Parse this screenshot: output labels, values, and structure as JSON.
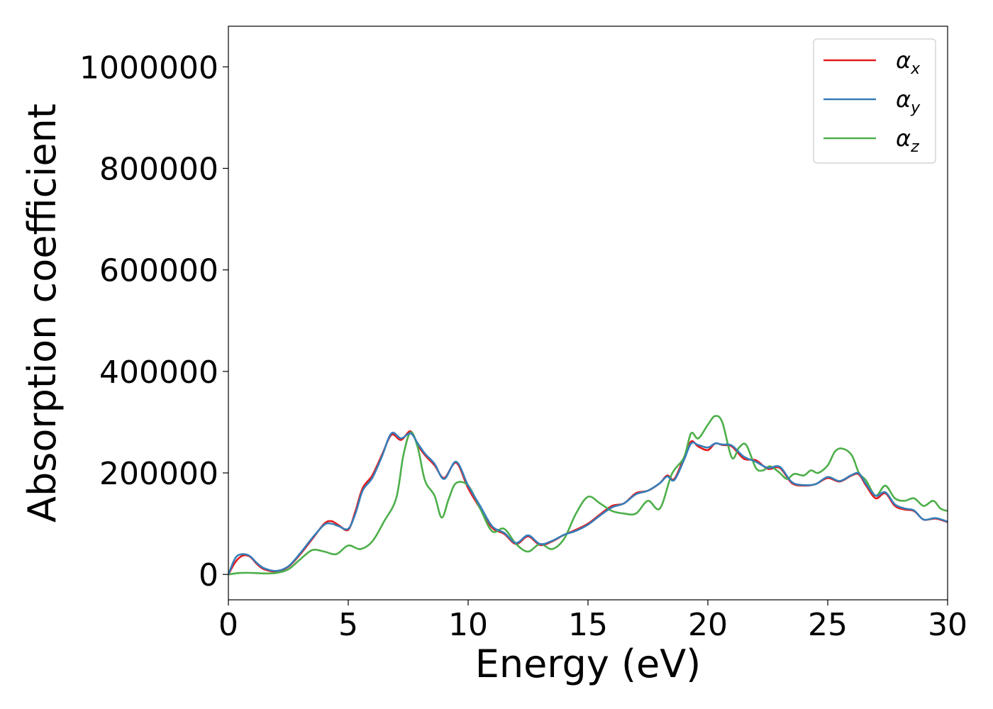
{
  "chart_data": {
    "type": "line",
    "xlabel": "Energy (eV)",
    "ylabel": "Absorption coefficient",
    "xlim": [
      0,
      30
    ],
    "ylim": [
      -50000,
      1080000
    ],
    "xticks": [
      0,
      5,
      10,
      15,
      20,
      25,
      30
    ],
    "xtick_labels": [
      "0",
      "5",
      "10",
      "15",
      "20",
      "25",
      "30"
    ],
    "yticks": [
      0,
      200000,
      400000,
      600000,
      800000,
      1000000
    ],
    "ytick_labels": [
      "0",
      "200000",
      "400000",
      "600000",
      "800000",
      "1000000"
    ],
    "grid": false,
    "legend_position": "top-right",
    "series": [
      {
        "name": "αx",
        "legend_symbol": "α",
        "legend_subscript": "x",
        "color": "#e41a1c",
        "x": [
          0,
          0.3,
          0.6,
          0.9,
          1.2,
          1.5,
          2.0,
          2.5,
          3.0,
          3.5,
          4.0,
          4.3,
          4.6,
          5.0,
          5.3,
          5.6,
          6.0,
          6.4,
          6.8,
          7.2,
          7.6,
          7.9,
          8.2,
          8.6,
          9.0,
          9.5,
          10.0,
          10.5,
          11.0,
          11.5,
          12.0,
          12.5,
          13.0,
          13.5,
          14.0,
          14.5,
          15.0,
          15.5,
          16.0,
          16.5,
          17.0,
          17.5,
          18.0,
          18.3,
          18.6,
          19.0,
          19.3,
          19.6,
          20.0,
          20.3,
          20.6,
          21.0,
          21.5,
          22.0,
          22.5,
          23.0,
          23.5,
          24.0,
          24.5,
          25.0,
          25.5,
          26.0,
          26.3,
          26.6,
          27.0,
          27.4,
          27.8,
          28.2,
          28.6,
          29.0,
          29.5,
          30.0
        ],
        "y": [
          0,
          25000,
          37000,
          35000,
          20000,
          10000,
          6000,
          15000,
          40000,
          70000,
          100000,
          105000,
          97000,
          88000,
          125000,
          170000,
          195000,
          235000,
          275000,
          265000,
          282000,
          255000,
          235000,
          215000,
          190000,
          220000,
          170000,
          130000,
          92000,
          80000,
          60000,
          75000,
          58000,
          65000,
          78000,
          88000,
          100000,
          118000,
          135000,
          140000,
          160000,
          165000,
          180000,
          195000,
          188000,
          230000,
          262000,
          252000,
          245000,
          258000,
          255000,
          252000,
          228000,
          225000,
          208000,
          210000,
          180000,
          175000,
          178000,
          190000,
          183000,
          195000,
          197000,
          175000,
          150000,
          160000,
          135000,
          128000,
          125000,
          108000,
          110000,
          103000
        ]
      },
      {
        "name": "αy",
        "legend_symbol": "α",
        "legend_subscript": "y",
        "color": "#377eb8",
        "x": [
          0,
          0.3,
          0.6,
          0.9,
          1.2,
          1.5,
          2.0,
          2.5,
          3.0,
          3.5,
          4.0,
          4.3,
          4.6,
          5.0,
          5.3,
          5.6,
          6.0,
          6.4,
          6.8,
          7.2,
          7.6,
          7.9,
          8.2,
          8.6,
          9.0,
          9.5,
          10.0,
          10.5,
          11.0,
          11.5,
          12.0,
          12.5,
          13.0,
          13.5,
          14.0,
          14.5,
          15.0,
          15.5,
          16.0,
          16.5,
          17.0,
          17.5,
          18.0,
          18.3,
          18.6,
          19.0,
          19.3,
          19.6,
          20.0,
          20.3,
          20.6,
          21.0,
          21.5,
          22.0,
          22.5,
          23.0,
          23.5,
          24.0,
          24.5,
          25.0,
          25.5,
          26.0,
          26.3,
          26.6,
          27.0,
          27.4,
          27.8,
          28.2,
          28.6,
          29.0,
          29.5,
          30.0
        ],
        "y": [
          0,
          33000,
          40000,
          36000,
          22000,
          12000,
          7000,
          16000,
          42000,
          72000,
          98000,
          100000,
          95000,
          90000,
          120000,
          165000,
          190000,
          232000,
          278000,
          268000,
          278000,
          258000,
          238000,
          218000,
          188000,
          222000,
          175000,
          135000,
          95000,
          82000,
          62000,
          77000,
          60000,
          66000,
          78000,
          86000,
          98000,
          116000,
          132000,
          140000,
          158000,
          165000,
          180000,
          193000,
          186000,
          225000,
          258000,
          255000,
          250000,
          258000,
          256000,
          254000,
          232000,
          222000,
          210000,
          212000,
          182000,
          176000,
          178000,
          192000,
          184000,
          196000,
          199000,
          178000,
          155000,
          162000,
          138000,
          130000,
          126000,
          108000,
          111000,
          104000
        ]
      },
      {
        "name": "αz",
        "legend_symbol": "α",
        "legend_subscript": "z",
        "color": "#4daf4a",
        "x": [
          0,
          0.5,
          1.0,
          1.5,
          2.0,
          2.5,
          3.0,
          3.5,
          4.0,
          4.5,
          5.0,
          5.5,
          6.0,
          6.5,
          7.0,
          7.3,
          7.6,
          7.9,
          8.2,
          8.6,
          8.9,
          9.2,
          9.5,
          10.0,
          10.5,
          11.0,
          11.5,
          12.0,
          12.5,
          13.0,
          13.5,
          14.0,
          14.5,
          15.0,
          15.5,
          16.0,
          16.5,
          17.0,
          17.5,
          18.0,
          18.5,
          19.0,
          19.3,
          19.6,
          20.0,
          20.3,
          20.6,
          21.0,
          21.3,
          21.6,
          22.0,
          22.3,
          22.6,
          23.0,
          23.3,
          23.6,
          24.0,
          24.3,
          24.6,
          25.0,
          25.3,
          25.6,
          26.0,
          26.3,
          26.6,
          27.0,
          27.4,
          27.8,
          28.2,
          28.6,
          29.0,
          29.4,
          29.7,
          30.0
        ],
        "y": [
          0,
          3000,
          3000,
          2000,
          3000,
          10000,
          30000,
          48000,
          45000,
          40000,
          57000,
          50000,
          65000,
          105000,
          150000,
          235000,
          280000,
          250000,
          185000,
          155000,
          112000,
          150000,
          180000,
          175000,
          130000,
          85000,
          90000,
          60000,
          45000,
          60000,
          50000,
          70000,
          120000,
          153000,
          140000,
          125000,
          120000,
          120000,
          145000,
          130000,
          198000,
          230000,
          278000,
          268000,
          295000,
          312000,
          300000,
          230000,
          250000,
          255000,
          210000,
          205000,
          213000,
          200000,
          188000,
          198000,
          195000,
          205000,
          200000,
          215000,
          242000,
          248000,
          235000,
          200000,
          185000,
          155000,
          175000,
          150000,
          145000,
          150000,
          135000,
          145000,
          130000,
          125000
        ]
      }
    ]
  }
}
